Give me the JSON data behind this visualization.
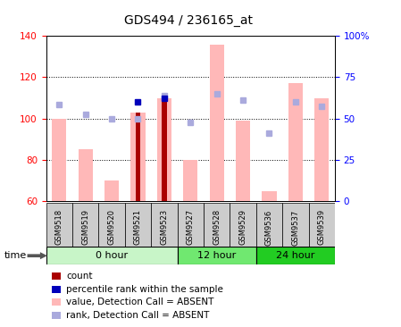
{
  "title": "GDS494 / 236165_at",
  "samples": [
    "GSM9518",
    "GSM9519",
    "GSM9520",
    "GSM9521",
    "GSM9523",
    "GSM9527",
    "GSM9528",
    "GSM9529",
    "GSM9536",
    "GSM9537",
    "GSM9539"
  ],
  "group_configs": [
    {
      "label": "0 hour",
      "color": "#c8f5c8",
      "start": 0,
      "end": 5
    },
    {
      "label": "12 hour",
      "color": "#70e870",
      "start": 5,
      "end": 8
    },
    {
      "label": "24 hour",
      "color": "#22cc22",
      "start": 8,
      "end": 11
    }
  ],
  "value_absent": [
    100,
    85,
    70,
    103,
    110,
    80,
    136,
    99,
    65,
    117,
    110
  ],
  "rank_absent": [
    107,
    102,
    100,
    100,
    111,
    98,
    112,
    109,
    93,
    108,
    106
  ],
  "count": [
    null,
    null,
    null,
    103,
    110,
    null,
    null,
    null,
    null,
    null,
    null
  ],
  "percentile": [
    null,
    null,
    null,
    108,
    110,
    null,
    null,
    null,
    null,
    null,
    null
  ],
  "ylim_left": [
    60,
    140
  ],
  "ylim_right": [
    0,
    100
  ],
  "yticks_left": [
    60,
    80,
    100,
    120,
    140
  ],
  "yticks_right": [
    0,
    25,
    50,
    75,
    100
  ],
  "ytick_labels_right": [
    "0",
    "25",
    "50",
    "75",
    "100%"
  ],
  "color_value_absent": "#ffb8b8",
  "color_rank_absent": "#aaaadd",
  "color_count": "#aa0000",
  "color_percentile": "#0000bb",
  "legend_items": [
    {
      "label": "count",
      "color": "#aa0000"
    },
    {
      "label": "percentile rank within the sample",
      "color": "#0000bb"
    },
    {
      "label": "value, Detection Call = ABSENT",
      "color": "#ffb8b8"
    },
    {
      "label": "rank, Detection Call = ABSENT",
      "color": "#aaaadd"
    }
  ]
}
